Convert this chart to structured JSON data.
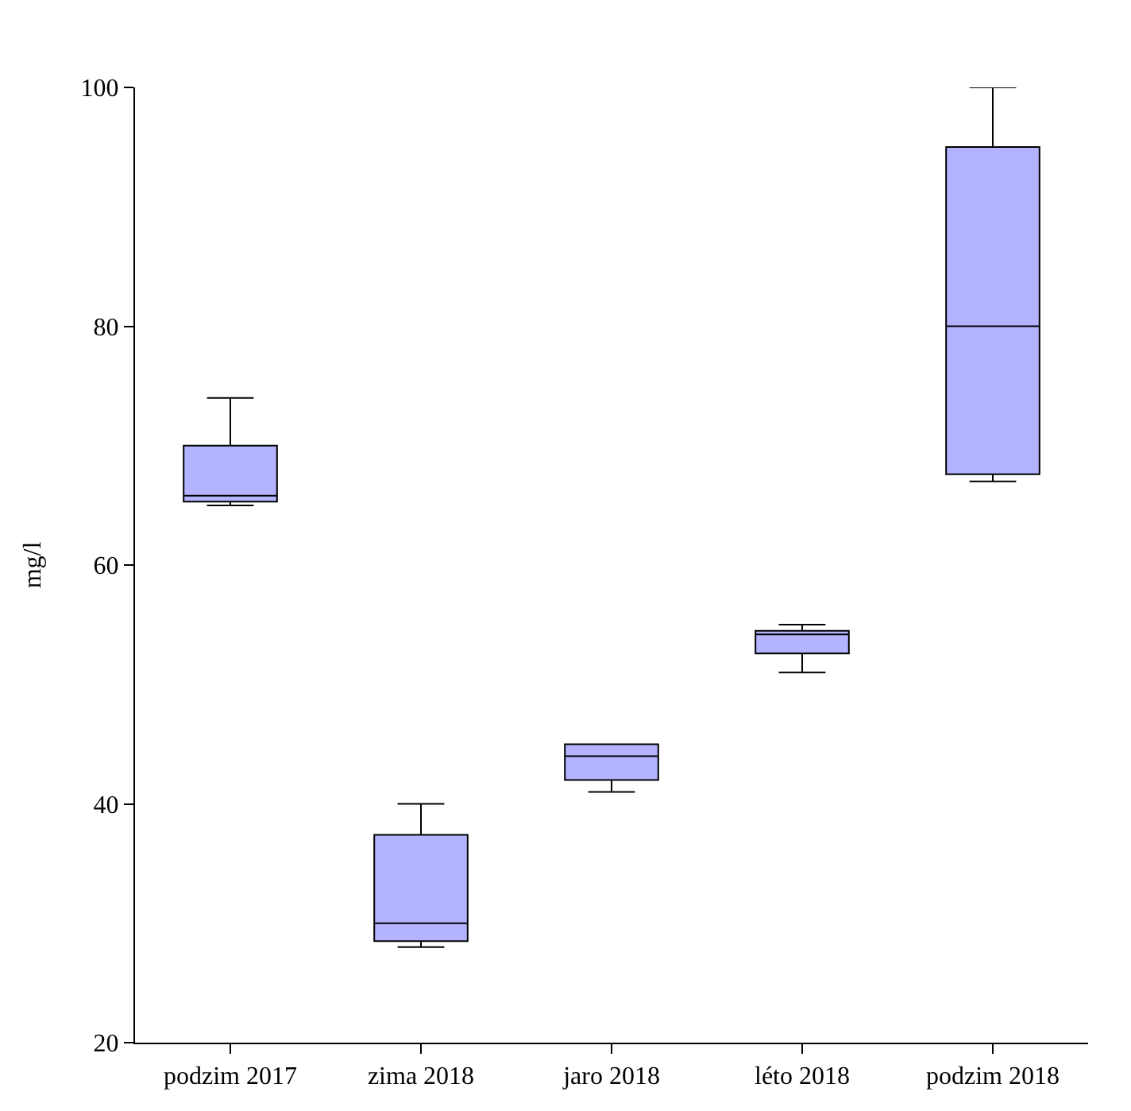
{
  "chart_data": {
    "type": "box",
    "ylabel": "mg/l",
    "categories": [
      "podzim 2017",
      "zima 2018",
      "jaro 2018",
      "léto 2018",
      "podzim 2018"
    ],
    "boxes": [
      {
        "low": 65,
        "q1": 65.3,
        "median": 65.8,
        "q3": 70,
        "high": 74
      },
      {
        "low": 28,
        "q1": 28.5,
        "median": 30,
        "q3": 37.4,
        "high": 40
      },
      {
        "low": 41,
        "q1": 42,
        "median": 44,
        "q3": 45,
        "high": 45
      },
      {
        "low": 51,
        "q1": 52.6,
        "median": 54.2,
        "q3": 54.5,
        "high": 55
      },
      {
        "low": 67,
        "q1": 67.6,
        "median": 80,
        "q3": 95,
        "high": 100
      }
    ],
    "color": "#b3b3ff",
    "ylim": [
      20,
      100
    ],
    "yticks": [
      20,
      40,
      60,
      80,
      100
    ],
    "grid": false,
    "legend": false
  }
}
